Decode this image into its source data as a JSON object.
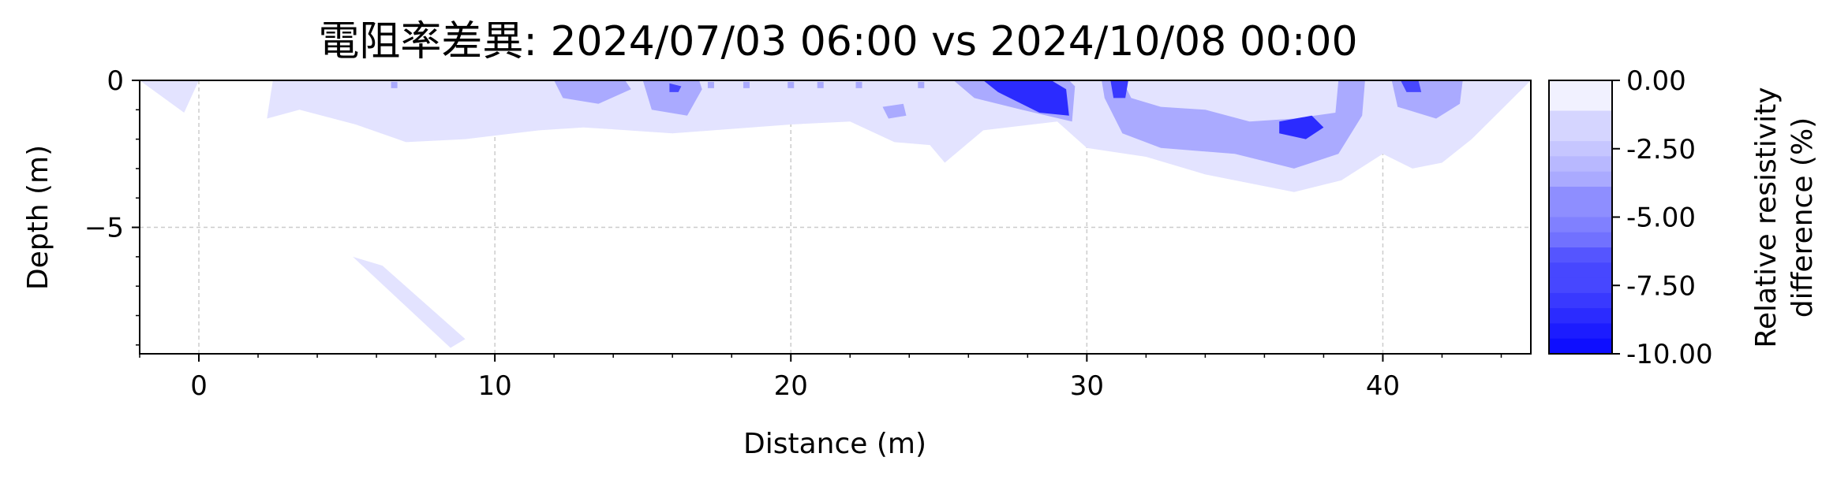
{
  "chart_data": {
    "type": "heatmap",
    "title": "電阻率差異: 2024/07/03 06:00 vs 2024/10/08 00:00",
    "xlabel": "Distance (m)",
    "ylabel": "Depth (m)",
    "xlim": [
      -2,
      45
    ],
    "ylim": [
      -9.3,
      0
    ],
    "xticks": [
      0,
      10,
      20,
      30,
      40
    ],
    "xtick_labels": [
      "0",
      "10",
      "20",
      "30",
      "40"
    ],
    "yticks": [
      0,
      -5
    ],
    "ytick_labels": [
      "0",
      "−5"
    ],
    "grid": true,
    "colorbar": {
      "label_line1": "Relative resistivity",
      "label_line2": "difference (%)",
      "vmin": -10,
      "vmax": 0,
      "ticks": [
        0,
        -2.5,
        -5,
        -7.5,
        -10
      ],
      "tick_labels": [
        "0.00",
        "-2.50",
        "-5.00",
        "-7.50",
        "-10.00"
      ],
      "levels": 18,
      "color_low": "#0000ff",
      "color_high": "#ffffff"
    },
    "anomalies": [
      {
        "name": "faint-left-edge",
        "value": -1.0,
        "points": [
          [
            -2,
            0
          ],
          [
            -0.5,
            -1.1
          ],
          [
            0,
            0
          ]
        ]
      },
      {
        "name": "faint-shallow-band",
        "value": -1.0,
        "points": [
          [
            2.3,
            -1.3
          ],
          [
            3.4,
            -1.0
          ],
          [
            5.3,
            -1.5
          ],
          [
            7,
            -2.1
          ],
          [
            9,
            -2.0
          ],
          [
            11.5,
            -1.7
          ],
          [
            13,
            -1.6
          ],
          [
            16,
            -1.8
          ],
          [
            20,
            -1.5
          ],
          [
            22,
            -1.4
          ],
          [
            23.5,
            -2.1
          ],
          [
            24.7,
            -2.2
          ],
          [
            25.2,
            -2.8
          ],
          [
            26.5,
            -1.7
          ],
          [
            29,
            -1.4
          ],
          [
            30,
            -2.3
          ],
          [
            32,
            -2.6
          ],
          [
            34,
            -3.2
          ],
          [
            37,
            -3.8
          ],
          [
            38.6,
            -3.4
          ],
          [
            40,
            -2.5
          ],
          [
            41,
            -3.0
          ],
          [
            42,
            -2.8
          ],
          [
            43,
            -2.0
          ],
          [
            45,
            0
          ],
          [
            2.5,
            0
          ]
        ]
      },
      {
        "name": "faint-diagonal-streak",
        "value": -1.0,
        "points": [
          [
            5.2,
            -6.0
          ],
          [
            6.2,
            -6.3
          ],
          [
            9.0,
            -8.8
          ],
          [
            8.5,
            -9.1
          ]
        ]
      },
      {
        "name": "moderate-12-14",
        "value": -3.5,
        "points": [
          [
            12,
            0
          ],
          [
            12.3,
            -0.6
          ],
          [
            13.5,
            -0.8
          ],
          [
            14.6,
            -0.3
          ],
          [
            14.4,
            0
          ]
        ]
      },
      {
        "name": "moderate-15-17",
        "value": -3.5,
        "points": [
          [
            15,
            0
          ],
          [
            15.3,
            -1.0
          ],
          [
            16.5,
            -1.2
          ],
          [
            17,
            -0.3
          ],
          [
            16.9,
            0
          ]
        ]
      },
      {
        "name": "moderate-26-29",
        "value": -3.5,
        "points": [
          [
            25.5,
            0
          ],
          [
            26.2,
            -0.6
          ],
          [
            27.8,
            -1.0
          ],
          [
            29.5,
            -1.4
          ],
          [
            29.6,
            -0.2
          ],
          [
            29.4,
            0
          ]
        ]
      },
      {
        "name": "moderate-30-40",
        "value": -3.5,
        "points": [
          [
            30.5,
            0
          ],
          [
            30.6,
            -0.6
          ],
          [
            31.2,
            -1.8
          ],
          [
            32.5,
            -2.3
          ],
          [
            35,
            -2.5
          ],
          [
            37,
            -3.0
          ],
          [
            38.5,
            -2.5
          ],
          [
            39.3,
            -1.2
          ],
          [
            39.4,
            0
          ],
          [
            38.5,
            0
          ],
          [
            38.4,
            -1.1
          ],
          [
            37,
            -1.3
          ],
          [
            35.5,
            -1.4
          ],
          [
            34,
            -1.0
          ],
          [
            32.5,
            -0.9
          ],
          [
            31.5,
            -0.6
          ],
          [
            31.2,
            0
          ]
        ]
      },
      {
        "name": "moderate-40-42",
        "value": -3.5,
        "points": [
          [
            40.3,
            0
          ],
          [
            40.5,
            -0.9
          ],
          [
            41.8,
            -1.3
          ],
          [
            42.6,
            -0.8
          ],
          [
            42.7,
            0
          ]
        ]
      },
      {
        "name": "moderate-small-23",
        "value": -3.5,
        "points": [
          [
            23.1,
            -0.9
          ],
          [
            23.8,
            -0.8
          ],
          [
            23.9,
            -1.2
          ],
          [
            23.3,
            -1.3
          ]
        ]
      },
      {
        "name": "strong-16",
        "value": -7.5,
        "points": [
          [
            15.9,
            -0.1
          ],
          [
            16.3,
            -0.2
          ],
          [
            16.2,
            -0.4
          ],
          [
            15.9,
            -0.4
          ]
        ]
      },
      {
        "name": "strong-26-29",
        "value": -8.5,
        "points": [
          [
            26.5,
            0
          ],
          [
            27,
            -0.4
          ],
          [
            28.4,
            -1.1
          ],
          [
            29.4,
            -1.2
          ],
          [
            29.3,
            -0.3
          ],
          [
            28.8,
            0
          ]
        ]
      },
      {
        "name": "strong-31",
        "value": -8.0,
        "points": [
          [
            30.8,
            0
          ],
          [
            30.9,
            -0.6
          ],
          [
            31.3,
            -0.6
          ],
          [
            31.4,
            0
          ]
        ]
      },
      {
        "name": "strong-37",
        "value": -8.5,
        "points": [
          [
            36.5,
            -1.4
          ],
          [
            37.6,
            -1.2
          ],
          [
            38,
            -1.6
          ],
          [
            37.4,
            -2.0
          ],
          [
            36.5,
            -1.8
          ]
        ]
      },
      {
        "name": "strong-40",
        "value": -7.5,
        "points": [
          [
            40.6,
            0
          ],
          [
            40.8,
            -0.4
          ],
          [
            41.3,
            -0.4
          ],
          [
            41.2,
            0
          ]
        ]
      }
    ],
    "specks": [
      {
        "value": -3.5,
        "points": [
          [
            6.6,
            -0.05
          ],
          [
            12.9,
            -0.05
          ],
          [
            17.3,
            -0.05
          ],
          [
            18.5,
            -0.05
          ],
          [
            20,
            -0.05
          ],
          [
            21,
            -0.05
          ],
          [
            22.3,
            -0.05
          ],
          [
            24.4,
            -0.05
          ]
        ]
      }
    ]
  }
}
